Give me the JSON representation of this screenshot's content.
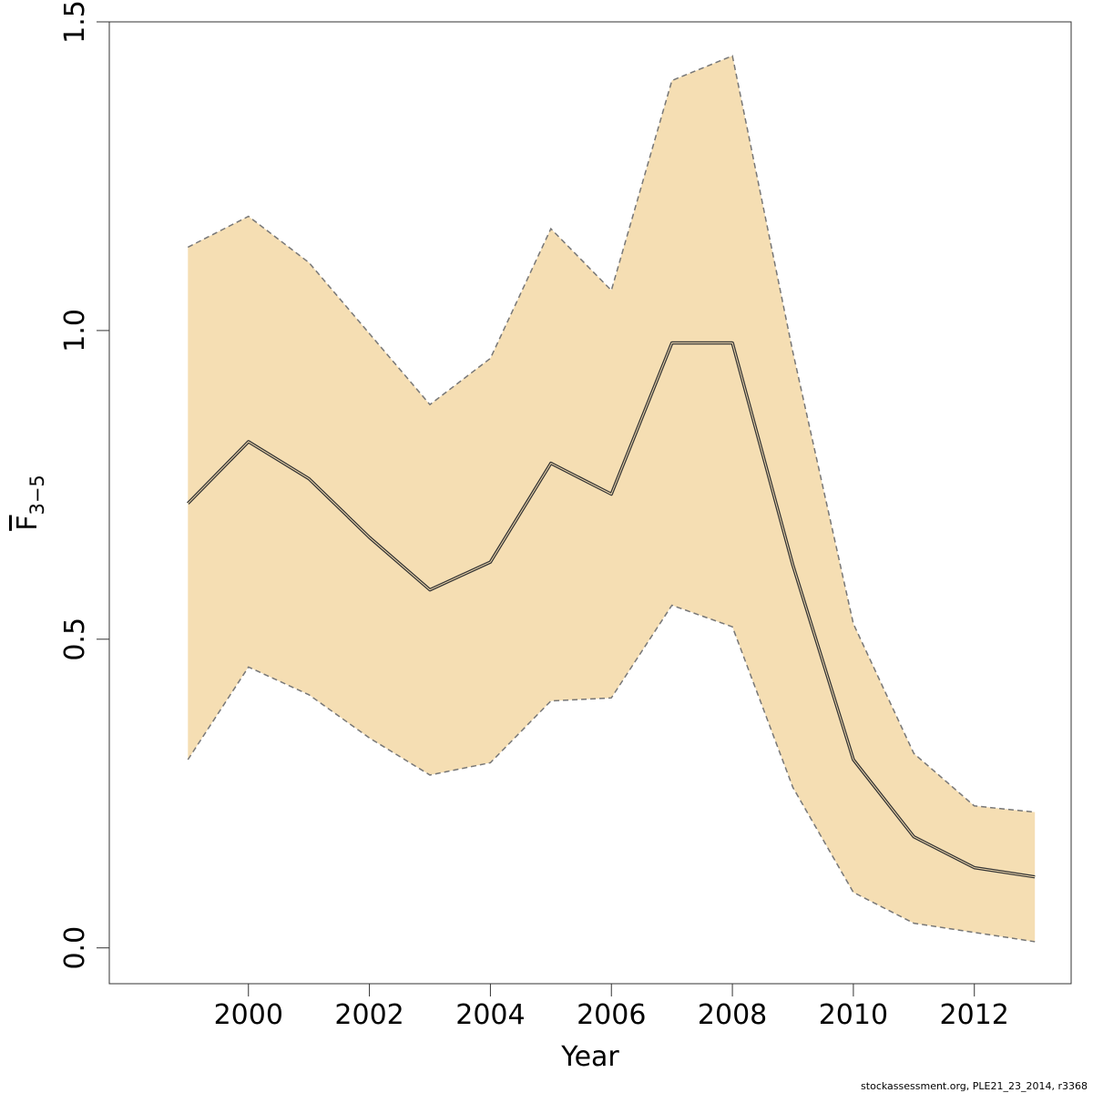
{
  "chart_data": {
    "type": "area",
    "xlabel": "Year",
    "ylabel": {
      "main": "F",
      "sub": "3−5"
    },
    "x": [
      1999,
      2000,
      2001,
      2002,
      2003,
      2004,
      2005,
      2006,
      2007,
      2008,
      2009,
      2010,
      2011,
      2012,
      2013
    ],
    "series": [
      {
        "role": "estimate",
        "values": [
          0.72,
          0.82,
          0.76,
          0.665,
          0.58,
          0.625,
          0.785,
          0.735,
          0.98,
          0.98,
          0.62,
          0.305,
          0.18,
          0.13,
          0.115
        ]
      },
      {
        "role": "upper",
        "values": [
          1.135,
          1.185,
          1.11,
          0.995,
          0.88,
          0.955,
          1.165,
          1.065,
          1.405,
          1.445,
          0.965,
          0.525,
          0.315,
          0.23,
          0.22
        ]
      },
      {
        "role": "lower",
        "values": [
          0.305,
          0.455,
          0.41,
          0.34,
          0.28,
          0.3,
          0.4,
          0.405,
          0.555,
          0.52,
          0.26,
          0.09,
          0.04,
          0.025,
          0.01
        ]
      }
    ],
    "xlim": [
      1997.7,
      2013.6
    ],
    "ylim": [
      -0.058,
      1.5
    ],
    "xticks": [
      "2000",
      "2002",
      "2004",
      "2006",
      "2008",
      "2010",
      "2012"
    ],
    "yticks": [
      "0.0",
      "0.5",
      "1.0",
      "1.5"
    ],
    "colors": {
      "band": "#F5DEB3",
      "band_edge": "#777777",
      "line": "#333333"
    },
    "grid": false,
    "legend": "none"
  },
  "footnote": "stockassessment.org, PLE21_23_2014, r3368"
}
